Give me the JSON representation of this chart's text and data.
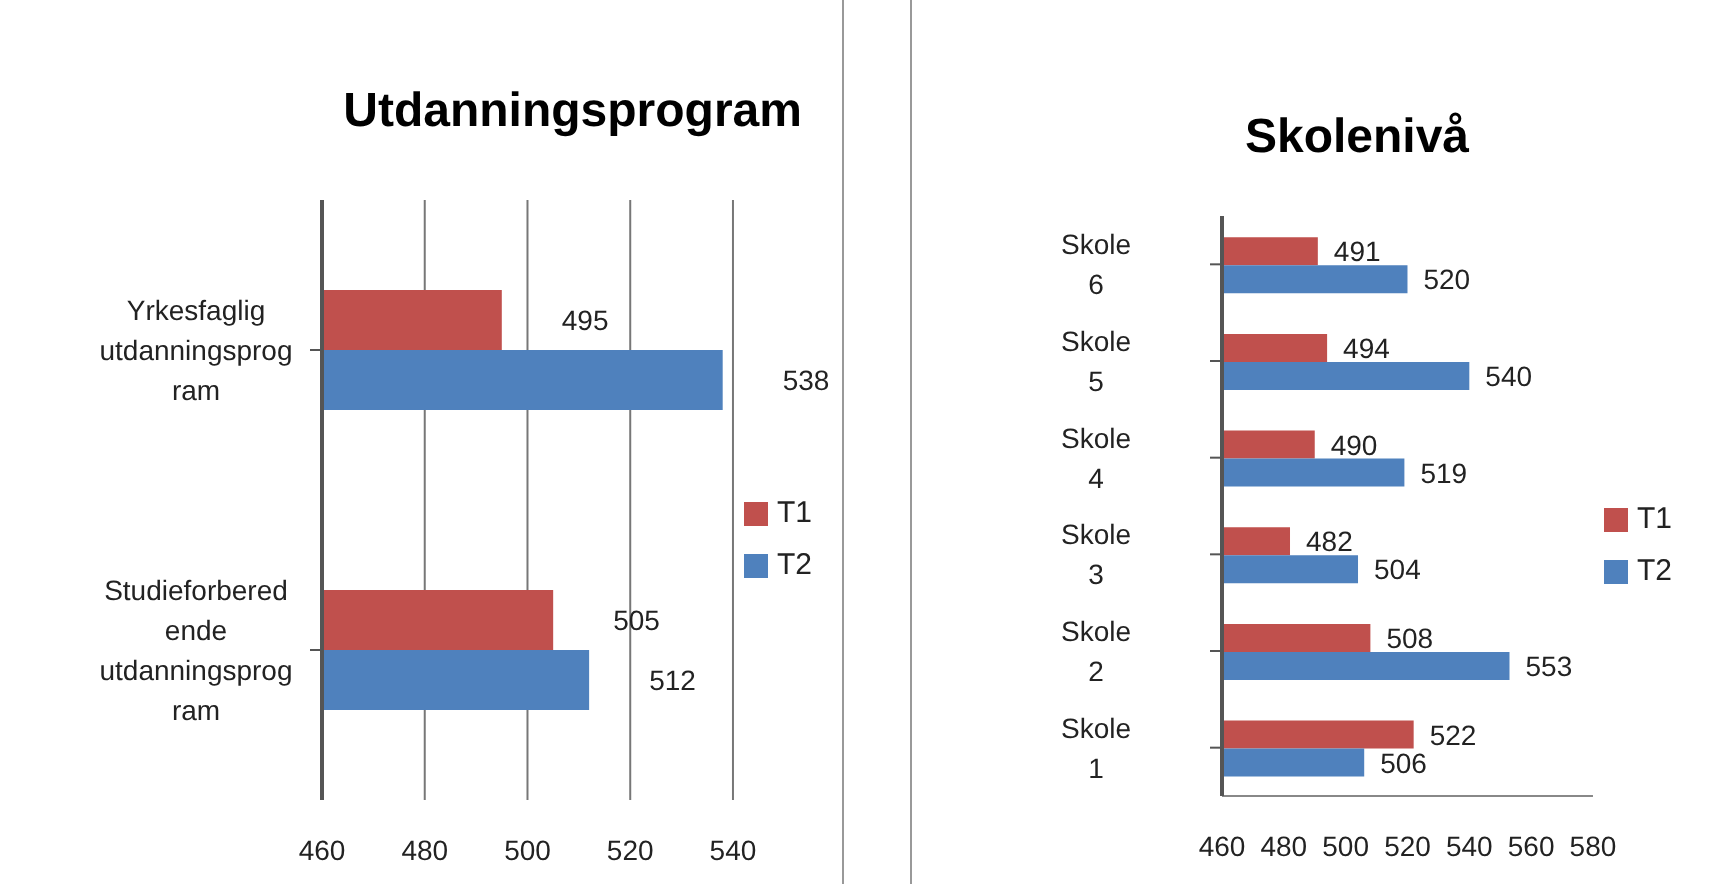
{
  "chart_data": [
    {
      "type": "bar",
      "orientation": "horizontal",
      "title": "Utdanningsprogram",
      "categories": [
        "Yrkesfaglig utdanningsprogram",
        "Studieforberedende utdanningsprogram"
      ],
      "series": [
        {
          "name": "T1",
          "color": "#c0504d",
          "values": [
            495,
            505
          ]
        },
        {
          "name": "T2",
          "color": "#4f81bd",
          "values": [
            538,
            512
          ]
        }
      ],
      "xlim": [
        460,
        540
      ],
      "xticks": [
        460,
        480,
        500,
        520,
        540
      ],
      "grid": "x",
      "data_labels": true,
      "legend": "right"
    },
    {
      "type": "bar",
      "orientation": "horizontal",
      "title": "Skolenivå",
      "categories": [
        "Skole 6",
        "Skole 5",
        "Skole 4",
        "Skole 3",
        "Skole 2",
        "Skole 1"
      ],
      "series": [
        {
          "name": "T1",
          "color": "#c0504d",
          "values": [
            491,
            494,
            490,
            482,
            508,
            522
          ]
        },
        {
          "name": "T2",
          "color": "#4f81bd",
          "values": [
            520,
            540,
            519,
            504,
            553,
            506
          ]
        }
      ],
      "xlim": [
        460,
        580
      ],
      "xticks": [
        460,
        480,
        500,
        520,
        540,
        560,
        580
      ],
      "grid": false,
      "data_labels": true,
      "legend": "right"
    }
  ]
}
